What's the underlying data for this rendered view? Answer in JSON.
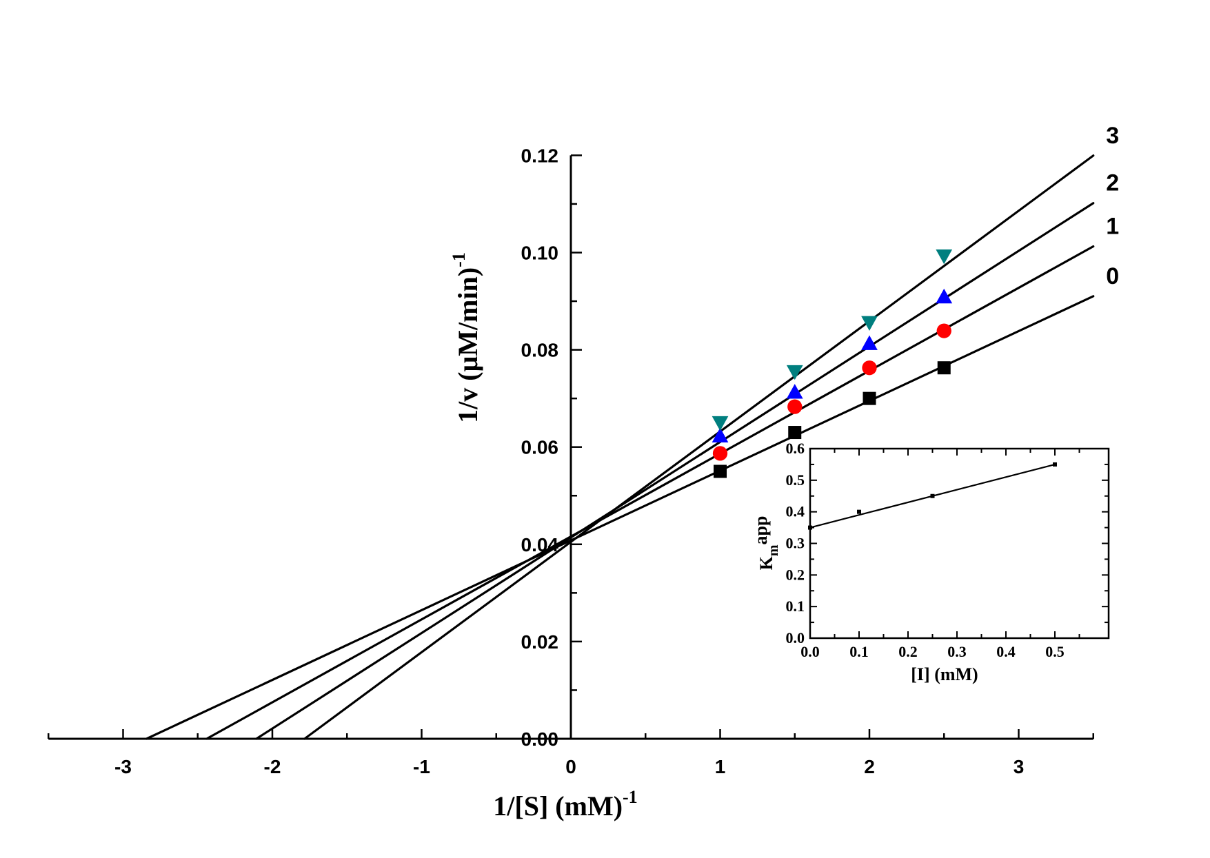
{
  "chart_data": [
    {
      "type": "line",
      "xlabel_main": "1/[S] (mM)",
      "xlabel_sup": "-1",
      "ylabel_main": "1/v (μM/min)",
      "ylabel_sup": "-1",
      "xlim": [
        -3.5,
        3.5
      ],
      "ylim": [
        0,
        0.12
      ],
      "x_ticks": [
        -3,
        -2,
        -1,
        0,
        1,
        2,
        3
      ],
      "x_tick_labels": [
        "-3",
        "-2",
        "-1",
        "0",
        "1",
        "2",
        "3"
      ],
      "y_ticks": [
        0,
        0.02,
        0.04,
        0.06,
        0.08,
        0.1,
        0.12
      ],
      "y_tick_labels": [
        "0.00",
        "0.02",
        "0.04",
        "0.06",
        "0.08",
        "0.10",
        "0.12"
      ],
      "grid": false,
      "series": [
        {
          "label": "0",
          "marker": "square",
          "color": "#000000",
          "x": [
            1,
            1.5,
            2,
            2.5
          ],
          "y": [
            0.055,
            0.063,
            0.07,
            0.0763
          ],
          "fit": {
            "slope": 0.01435,
            "intercept": 0.0408
          }
        },
        {
          "label": "1",
          "marker": "circle",
          "color": "#ff0000",
          "x": [
            1,
            1.5,
            2,
            2.5
          ],
          "y": [
            0.0587,
            0.0683,
            0.0763,
            0.0839
          ],
          "fit": {
            "slope": 0.01705,
            "intercept": 0.0416
          }
        },
        {
          "label": "2",
          "marker": "triangle-up",
          "color": "#0000ff",
          "x": [
            1,
            1.5,
            2,
            2.5
          ],
          "y": [
            0.0623,
            0.0713,
            0.0813,
            0.0909
          ],
          "fit": {
            "slope": 0.01965,
            "intercept": 0.0414
          }
        },
        {
          "label": "3",
          "marker": "triangle-down",
          "color": "#007f7f",
          "x": [
            1,
            1.5,
            2,
            2.5
          ],
          "y": [
            0.065,
            0.0755,
            0.0856,
            0.0993
          ],
          "fit": {
            "slope": 0.0227,
            "intercept": 0.0405
          }
        }
      ]
    },
    {
      "type": "line",
      "xlabel": "[I] (mM)",
      "ylabel_main": "K",
      "ylabel_sub": "m",
      "ylabel_sup": "app",
      "xlim": [
        0,
        0.55
      ],
      "ylim": [
        0,
        0.6
      ],
      "x_ticks": [
        0,
        0.1,
        0.2,
        0.3,
        0.4,
        0.5
      ],
      "x_tick_labels": [
        "0.0",
        "0.1",
        "0.2",
        "0.3",
        "0.4",
        "0.5"
      ],
      "y_ticks": [
        0,
        0.1,
        0.2,
        0.3,
        0.4,
        0.5,
        0.6
      ],
      "y_tick_labels": [
        "0.0",
        "0.1",
        "0.2",
        "0.3",
        "0.4",
        "0.5",
        "0.6"
      ],
      "grid": false,
      "series": [
        {
          "marker": "square",
          "color": "#000000",
          "x": [
            0,
            0.1,
            0.25,
            0.5
          ],
          "y": [
            0.35,
            0.4,
            0.45,
            0.55
          ],
          "fit": {
            "slope": 0.4,
            "intercept": 0.35
          }
        }
      ]
    }
  ]
}
